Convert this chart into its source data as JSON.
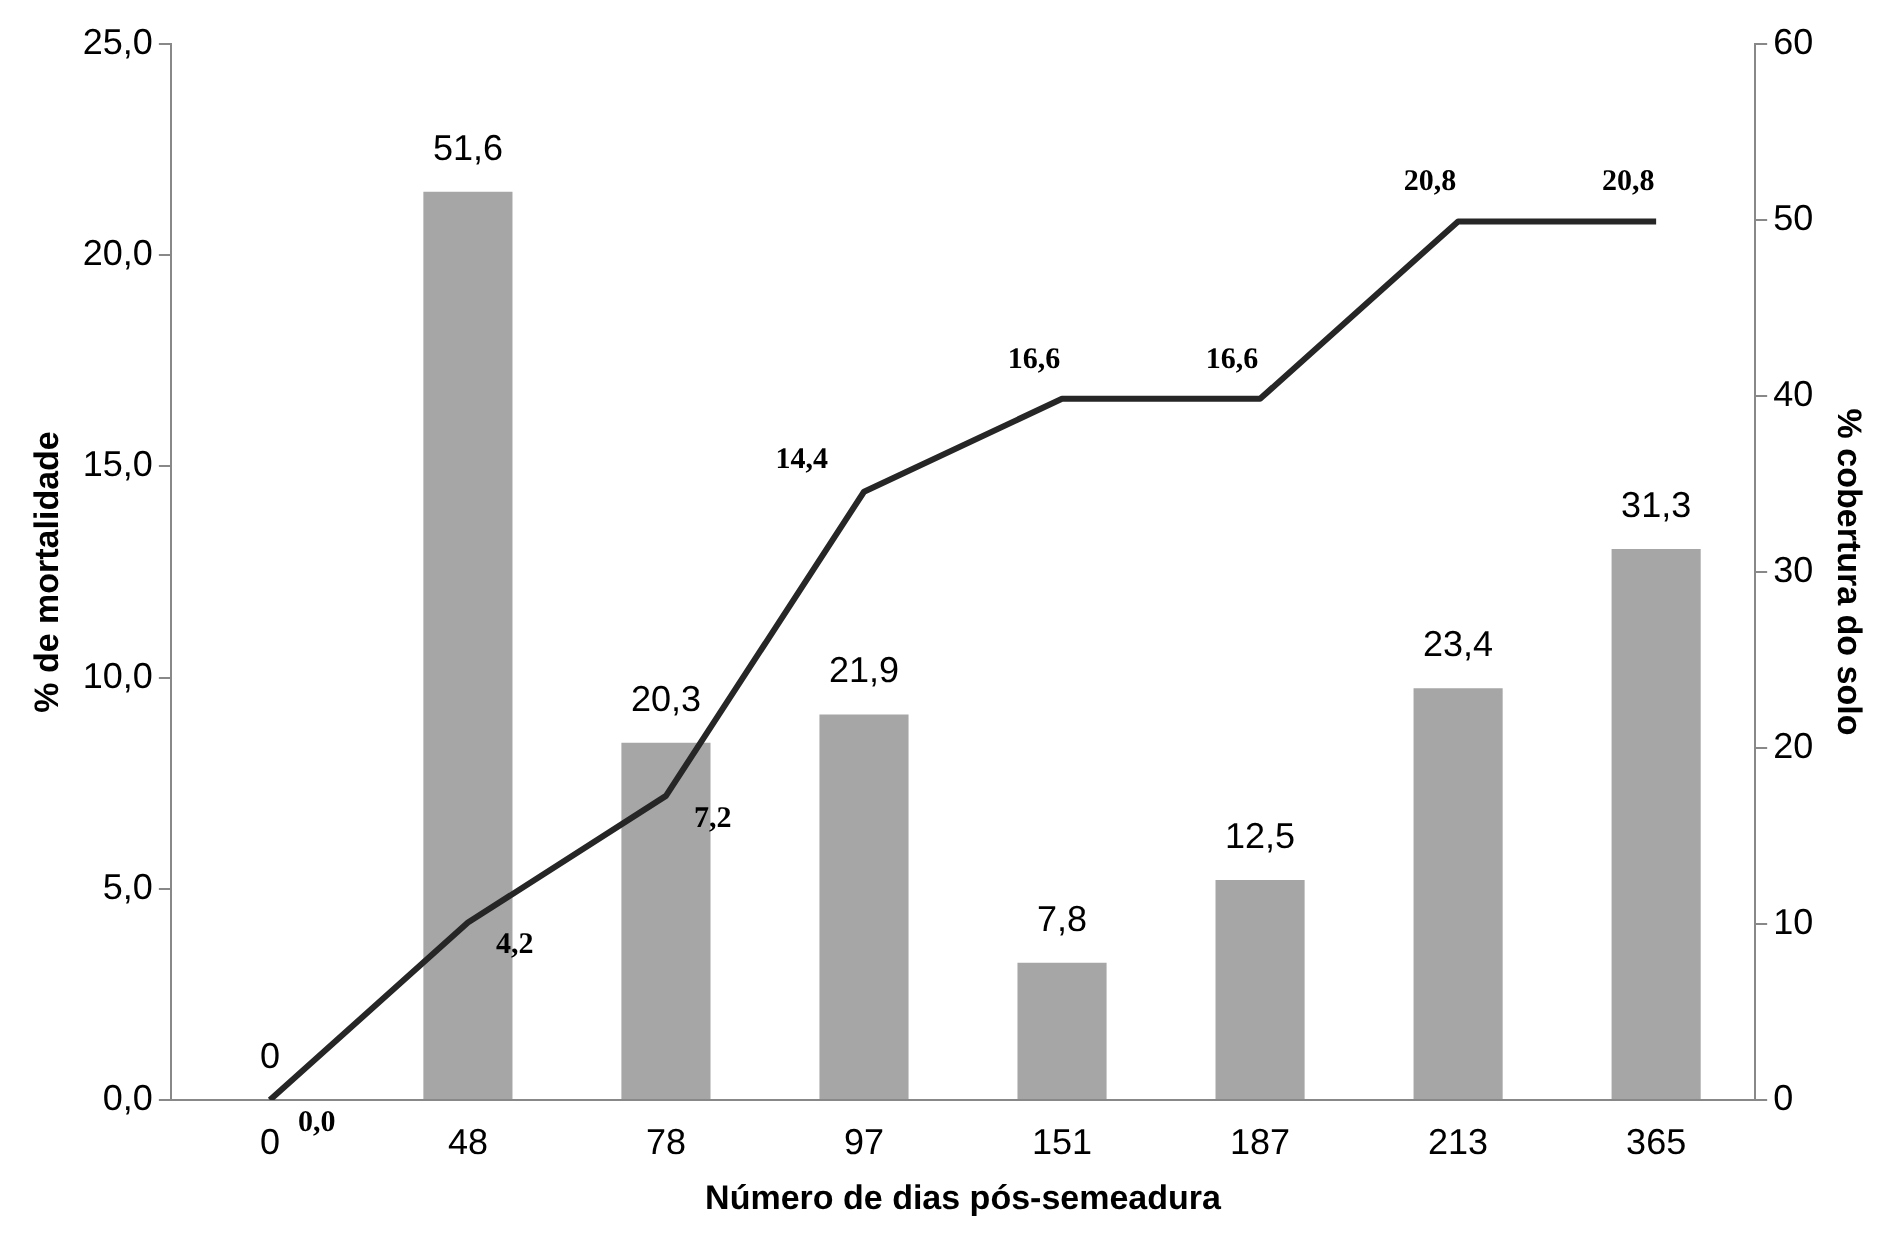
{
  "chart_data": {
    "type": "bar",
    "xlabel": "Número de dias pós-semeadura",
    "ylabel": "% de mortalidade",
    "y2label": "% cobertura do solo",
    "categories": [
      "0",
      "48",
      "78",
      "97",
      "151",
      "187",
      "213",
      "365"
    ],
    "series": [
      {
        "axis": "y2",
        "color": "#a6a6a6",
        "values": [
          0,
          51.6,
          20.3,
          21.9,
          7.8,
          12.5,
          23.4,
          31.3
        ],
        "value_labels": [
          "0",
          "51,6",
          "20,3",
          "21,9",
          "7,8",
          "12,5",
          "23,4",
          "31,3"
        ]
      },
      {
        "type": "line",
        "axis": "y",
        "color": "#262626",
        "values": [
          0,
          4.2,
          7.2,
          14.4,
          16.6,
          16.6,
          20.8,
          20.8
        ],
        "value_labels": [
          "0,0",
          "4,2",
          "7,2",
          "14,4",
          "16,6",
          "16,6",
          "20,8",
          "20,8"
        ]
      }
    ],
    "marker": "none",
    "line_style": "solid",
    "ylim": [
      0,
      25
    ],
    "yticks": [
      {
        "value": 0,
        "label": "0,0"
      },
      {
        "value": 5,
        "label": "5,0"
      },
      {
        "value": 10,
        "label": "10,0"
      },
      {
        "value": 15,
        "label": "15,0"
      },
      {
        "value": 20,
        "label": "20,0"
      },
      {
        "value": 25,
        "label": "25,0"
      }
    ],
    "y2lim": [
      0,
      60
    ],
    "y2ticks": [
      0,
      10,
      20,
      30,
      40,
      50,
      60
    ]
  }
}
